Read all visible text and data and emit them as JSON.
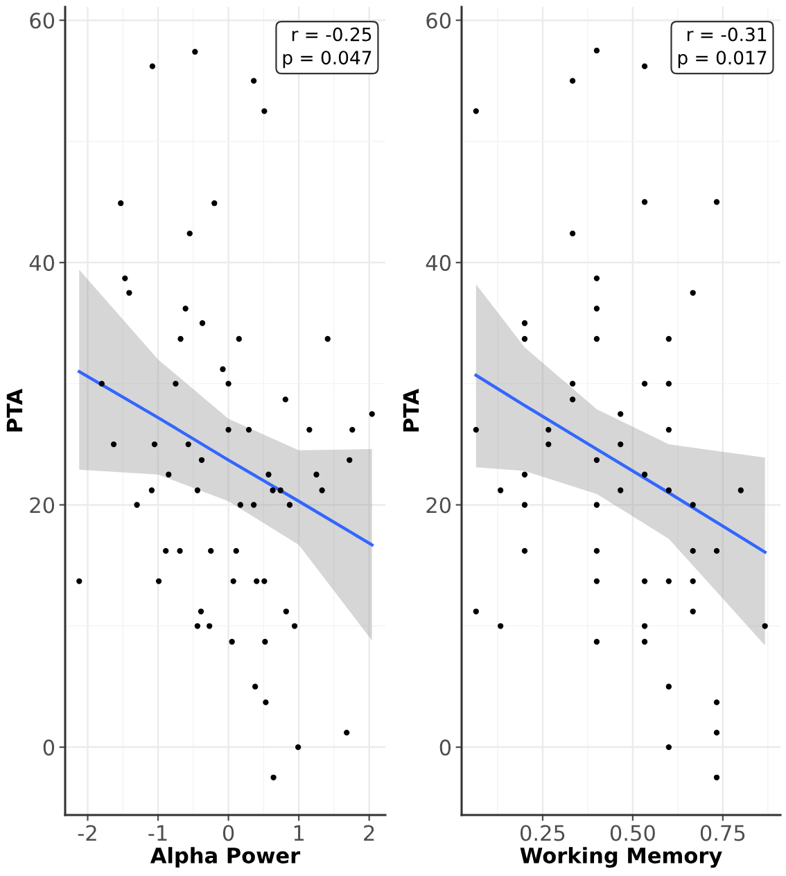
{
  "chart_data": [
    {
      "type": "scatter",
      "xlabel": "Alpha Power",
      "ylabel": "PTA",
      "xlim": [
        -2.32,
        2.23
      ],
      "ylim": [
        -5.6,
        61.1
      ],
      "xticks": [
        -2,
        -1,
        0,
        1,
        2
      ],
      "yticks": [
        0,
        20,
        40,
        60
      ],
      "grid": true,
      "annotations": [
        "r = -0.25\np = 0.047"
      ],
      "series": [
        {
          "marker": "circle",
          "color": "#000000",
          "x": [
            -1.08,
            -0.475,
            0.36,
            0.51,
            -1.53,
            -0.2,
            -0.55,
            -1.47,
            -1.41,
            -0.61,
            -0.37,
            -0.68,
            0.15,
            1.41,
            -0.08,
            0.0,
            -1.8,
            -0.75,
            0.81,
            2.04,
            0.0,
            0.29,
            1.15,
            1.76,
            -1.63,
            -1.05,
            -0.57,
            -0.38,
            1.72,
            -0.85,
            0.57,
            1.25,
            -1.09,
            -0.44,
            0.63,
            0.74,
            1.33,
            -1.3,
            0.17,
            0.36,
            0.87,
            -0.89,
            -0.69,
            -0.25,
            0.11,
            -2.12,
            -0.99,
            0.07,
            0.4,
            0.51,
            -0.39,
            0.82,
            -0.44,
            -0.27,
            0.94,
            0.05,
            0.52,
            0.38,
            0.53,
            1.68,
            0.99,
            0.64
          ],
          "values": [
            56.2,
            57.4,
            55.0,
            52.5,
            44.9,
            44.9,
            42.4,
            38.7,
            37.5,
            36.2,
            35.0,
            33.7,
            33.7,
            33.7,
            31.2,
            30.0,
            30.0,
            30.0,
            28.7,
            27.5,
            26.2,
            26.2,
            26.2,
            26.2,
            25.0,
            25.0,
            25.0,
            23.7,
            23.7,
            22.5,
            22.5,
            22.5,
            21.2,
            21.2,
            21.2,
            21.2,
            21.2,
            20.0,
            20.0,
            20.0,
            20.0,
            16.2,
            16.2,
            16.2,
            16.2,
            13.7,
            13.7,
            13.7,
            13.7,
            13.7,
            11.2,
            11.2,
            10.0,
            10.0,
            10.0,
            8.7,
            8.7,
            5.0,
            3.7,
            1.2,
            0.0,
            -2.5
          ]
        },
        {
          "type": "line",
          "color": "#3366ff",
          "x": [
            -2.12,
            -1,
            0,
            1,
            2.04
          ],
          "values": [
            31.0,
            27.2,
            23.7,
            20.3,
            16.7
          ],
          "lower": [
            22.9,
            22.5,
            20.3,
            16.7,
            8.8
          ],
          "upper": [
            39.4,
            32.0,
            27.1,
            24.5,
            24.6
          ]
        }
      ]
    },
    {
      "type": "scatter",
      "xlabel": "Working Memory",
      "ylabel": "PTA",
      "xlim": [
        0.025,
        0.91
      ],
      "ylim": [
        -5.6,
        61.1
      ],
      "xticks": [
        0.25,
        {
          "value": 0.5,
          "label": "0.50"
        },
        0.75
      ],
      "yticks": [
        0,
        20,
        40,
        60
      ],
      "grid": true,
      "annotations": [
        "r = -0.31\np = 0.017"
      ],
      "series": [
        {
          "marker": "circle",
          "color": "#000000",
          "x": [
            0.065,
            0.333,
            0.4,
            0.533,
            0.533,
            0.733,
            0.333,
            0.4,
            0.667,
            0.4,
            0.2,
            0.2,
            0.4,
            0.6,
            0.333,
            0.533,
            0.6,
            0.333,
            0.466,
            0.065,
            0.266,
            0.6,
            0.266,
            0.466,
            0.4,
            0.2,
            0.533,
            0.133,
            0.466,
            0.6,
            0.8,
            0.2,
            0.4,
            0.667,
            0.2,
            0.4,
            0.667,
            0.733,
            0.4,
            0.533,
            0.6,
            0.667,
            0.065,
            0.667,
            0.133,
            0.533,
            0.867,
            0.4,
            0.533,
            0.6,
            0.733,
            0.733,
            0.6,
            0.733
          ],
          "values": [
            52.5,
            55.0,
            57.5,
            56.2,
            45.0,
            45.0,
            42.4,
            38.7,
            37.5,
            36.2,
            35.0,
            33.7,
            33.7,
            33.7,
            30.0,
            30.0,
            30.0,
            28.7,
            27.5,
            26.2,
            26.2,
            26.2,
            25.0,
            25.0,
            23.7,
            22.5,
            22.5,
            21.2,
            21.2,
            21.2,
            21.2,
            20.0,
            20.0,
            20.0,
            16.2,
            16.2,
            16.2,
            16.2,
            13.7,
            13.7,
            13.7,
            13.7,
            11.2,
            11.2,
            10.0,
            10.0,
            10.0,
            8.7,
            8.7,
            5.0,
            3.7,
            1.2,
            0.0,
            -2.5
          ]
        },
        {
          "type": "line",
          "color": "#3366ff",
          "x": [
            0.065,
            0.2,
            0.4,
            0.6,
            0.867
          ],
          "values": [
            30.7,
            28.2,
            24.6,
            21.0,
            16.1
          ],
          "lower": [
            23.1,
            22.8,
            20.9,
            17.2,
            8.4
          ],
          "upper": [
            38.2,
            33.0,
            27.9,
            25.0,
            23.9
          ]
        }
      ]
    }
  ]
}
